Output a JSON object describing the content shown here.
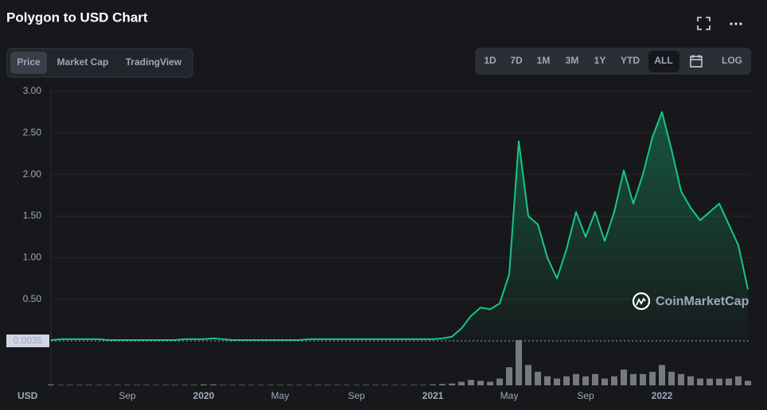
{
  "header": {
    "tabs": [
      "Price",
      "Market Cap",
      "TradingView"
    ],
    "active_tab": 0,
    "ranges": [
      "1D",
      "7D",
      "1M",
      "3M",
      "1Y",
      "YTD",
      "ALL"
    ],
    "active_range": 6,
    "log_button": "LOG"
  },
  "chart_data": {
    "type": "line",
    "title": "Polygon to USD Chart",
    "categories": [
      null,
      null,
      null,
      null,
      null,
      null,
      null,
      null,
      "Sep",
      null,
      null,
      null,
      null,
      null,
      null,
      null,
      "2020",
      null,
      null,
      null,
      null,
      null,
      null,
      null,
      "May",
      null,
      null,
      null,
      null,
      null,
      null,
      null,
      "Sep",
      null,
      null,
      null,
      null,
      null,
      null,
      null,
      "2021",
      null,
      null,
      null,
      null,
      null,
      null,
      null,
      "May",
      null,
      null,
      null,
      null,
      null,
      null,
      null,
      "Sep",
      null,
      null,
      null,
      null,
      null,
      null,
      null,
      "2022",
      null,
      null,
      null,
      null,
      null,
      null,
      null,
      null,
      null
    ],
    "series": [
      {
        "name": "Price",
        "color": "#16c784",
        "values": [
          0.01,
          0.02,
          0.02,
          0.02,
          0.02,
          0.02,
          0.01,
          0.01,
          0.01,
          0.01,
          0.01,
          0.01,
          0.01,
          0.01,
          0.02,
          0.02,
          0.02,
          0.03,
          0.02,
          0.01,
          0.01,
          0.01,
          0.01,
          0.01,
          0.01,
          0.01,
          0.01,
          0.02,
          0.02,
          0.02,
          0.02,
          0.02,
          0.02,
          0.02,
          0.02,
          0.02,
          0.02,
          0.02,
          0.02,
          0.02,
          0.02,
          0.03,
          0.05,
          0.15,
          0.3,
          0.4,
          0.38,
          0.45,
          0.8,
          2.4,
          1.5,
          1.4,
          1.0,
          0.75,
          1.1,
          1.55,
          1.25,
          1.55,
          1.2,
          1.55,
          2.05,
          1.65,
          2.0,
          2.45,
          2.75,
          2.3,
          1.8,
          1.6,
          1.45,
          1.55,
          1.65,
          1.4,
          1.15,
          0.62
        ]
      },
      {
        "name": "Volume",
        "color": "#c7cbd3",
        "axis": "y2",
        "values": [
          2,
          1,
          1,
          1,
          1,
          1,
          1,
          1,
          1,
          1,
          1,
          1,
          1,
          1,
          1,
          1,
          2,
          2,
          1,
          1,
          1,
          1,
          1,
          1,
          1,
          1,
          1,
          1,
          1,
          1,
          1,
          1,
          1,
          1,
          1,
          1,
          1,
          1,
          1,
          1,
          2,
          3,
          4,
          8,
          12,
          10,
          8,
          15,
          40,
          100,
          45,
          30,
          20,
          15,
          20,
          25,
          20,
          25,
          15,
          20,
          35,
          25,
          25,
          30,
          45,
          30,
          25,
          20,
          15,
          15,
          15,
          15,
          20,
          10
        ]
      }
    ],
    "ylim": [
      0,
      3
    ],
    "yticks": [
      {
        "value": 0.5,
        "label": "0.50"
      },
      {
        "value": 1,
        "label": "1.00"
      },
      {
        "value": 1.5,
        "label": "1.50"
      },
      {
        "value": 2,
        "label": "2.00"
      },
      {
        "value": 2.5,
        "label": "2.50"
      },
      {
        "value": 3,
        "label": "3.00"
      }
    ],
    "y2lim": [
      0,
      100
    ],
    "grid": true,
    "price_marker": "0.0035",
    "currency_label": "USD",
    "watermark": "CoinMarketCap"
  }
}
